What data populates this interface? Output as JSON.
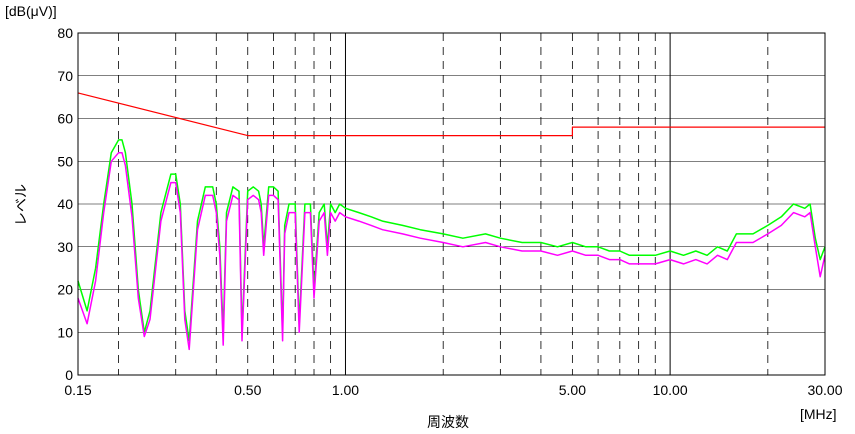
{
  "chart_data": {
    "type": "line",
    "title": "",
    "xlabel": "周波数",
    "ylabel": "レベル",
    "y_unit": "[dB(μV)]",
    "x_unit": "[MHz]",
    "x_scale": "log",
    "xlim": [
      0.15,
      30
    ],
    "ylim": [
      0,
      80
    ],
    "y_ticks": [
      "0",
      "10",
      "20",
      "30",
      "40",
      "50",
      "60",
      "70",
      "80"
    ],
    "x_tick_labels": [
      {
        "value": 0.15,
        "label": "0.15"
      },
      {
        "value": 0.5,
        "label": "0.50"
      },
      {
        "value": 1,
        "label": "1.00"
      },
      {
        "value": 5,
        "label": "5.00"
      },
      {
        "value": 10,
        "label": "10.00"
      },
      {
        "value": 30,
        "label": "30.00"
      }
    ],
    "x_major_grid": [
      1,
      10
    ],
    "x_minor_grid_dashed": [
      0.2,
      0.3,
      0.4,
      0.5,
      0.6,
      0.7,
      0.8,
      0.9,
      2,
      3,
      4,
      5,
      6,
      7,
      8,
      9,
      20
    ],
    "grid": true,
    "colors": {
      "limit": "#ff0000",
      "series1": "#00ff00",
      "series2": "#ff00ff",
      "grid": "#000000"
    },
    "series": [
      {
        "color": "#ff0000",
        "x": [
          0.15,
          0.5,
          0.5,
          5.0,
          5.0,
          30.0
        ],
        "y": [
          66,
          56,
          56,
          56,
          58,
          58
        ]
      },
      {
        "color": "#00ff00",
        "x": [
          0.15,
          0.16,
          0.17,
          0.18,
          0.19,
          0.2,
          0.205,
          0.21,
          0.22,
          0.23,
          0.24,
          0.25,
          0.27,
          0.29,
          0.3,
          0.31,
          0.32,
          0.33,
          0.35,
          0.37,
          0.39,
          0.4,
          0.41,
          0.42,
          0.43,
          0.45,
          0.47,
          0.48,
          0.5,
          0.52,
          0.54,
          0.55,
          0.56,
          0.58,
          0.6,
          0.62,
          0.64,
          0.65,
          0.67,
          0.7,
          0.72,
          0.75,
          0.78,
          0.8,
          0.83,
          0.86,
          0.88,
          0.9,
          0.93,
          0.96,
          1.0,
          1.1,
          1.2,
          1.3,
          1.5,
          1.7,
          2.0,
          2.3,
          2.7,
          3.0,
          3.5,
          4.0,
          4.5,
          5.0,
          5.5,
          6.0,
          6.5,
          7.0,
          7.5,
          8.0,
          9.0,
          10.0,
          11,
          12,
          13,
          14,
          15,
          16,
          18,
          20,
          22,
          24,
          26,
          27,
          28,
          29,
          30
        ],
        "y": [
          22,
          15,
          25,
          40,
          52,
          55,
          55,
          52,
          40,
          20,
          10,
          15,
          38,
          47,
          47,
          40,
          15,
          8,
          36,
          44,
          44,
          40,
          30,
          10,
          38,
          44,
          43,
          10,
          43,
          44,
          43,
          40,
          30,
          44,
          44,
          43,
          10,
          35,
          40,
          40,
          12,
          40,
          40,
          20,
          38,
          40,
          30,
          40,
          38,
          40,
          39,
          38,
          37,
          36,
          35,
          34,
          33,
          32,
          33,
          32,
          31,
          31,
          30,
          31,
          30,
          30,
          29,
          29,
          28,
          28,
          28,
          29,
          28,
          29,
          28,
          30,
          29,
          33,
          33,
          35,
          37,
          40,
          39,
          40,
          32,
          27,
          30
        ]
      },
      {
        "color": "#ff00ff",
        "x": [
          0.15,
          0.16,
          0.17,
          0.18,
          0.19,
          0.2,
          0.205,
          0.21,
          0.22,
          0.23,
          0.24,
          0.25,
          0.27,
          0.29,
          0.3,
          0.31,
          0.32,
          0.33,
          0.35,
          0.37,
          0.39,
          0.4,
          0.41,
          0.42,
          0.43,
          0.45,
          0.47,
          0.48,
          0.5,
          0.52,
          0.54,
          0.55,
          0.56,
          0.58,
          0.6,
          0.62,
          0.64,
          0.65,
          0.67,
          0.7,
          0.72,
          0.75,
          0.78,
          0.8,
          0.83,
          0.86,
          0.88,
          0.9,
          0.93,
          0.96,
          1.0,
          1.1,
          1.2,
          1.3,
          1.5,
          1.7,
          2.0,
          2.3,
          2.7,
          3.0,
          3.5,
          4.0,
          4.5,
          5.0,
          5.5,
          6.0,
          6.5,
          7.0,
          7.5,
          8.0,
          9.0,
          10.0,
          11,
          12,
          13,
          14,
          15,
          16,
          18,
          20,
          22,
          24,
          26,
          27,
          28,
          29,
          30
        ],
        "y": [
          18,
          12,
          22,
          38,
          50,
          52,
          52,
          49,
          37,
          18,
          9,
          13,
          36,
          45,
          45,
          38,
          13,
          6,
          34,
          42,
          42,
          38,
          28,
          7,
          36,
          42,
          41,
          8,
          41,
          42,
          41,
          38,
          28,
          42,
          42,
          41,
          8,
          33,
          38,
          38,
          10,
          38,
          38,
          18,
          36,
          38,
          28,
          38,
          36,
          38,
          37,
          36,
          35,
          34,
          33,
          32,
          31,
          30,
          31,
          30,
          29,
          29,
          28,
          29,
          28,
          28,
          27,
          27,
          26,
          26,
          26,
          27,
          26,
          27,
          26,
          28,
          27,
          31,
          31,
          33,
          35,
          38,
          37,
          38,
          30,
          23,
          28
        ]
      }
    ]
  }
}
